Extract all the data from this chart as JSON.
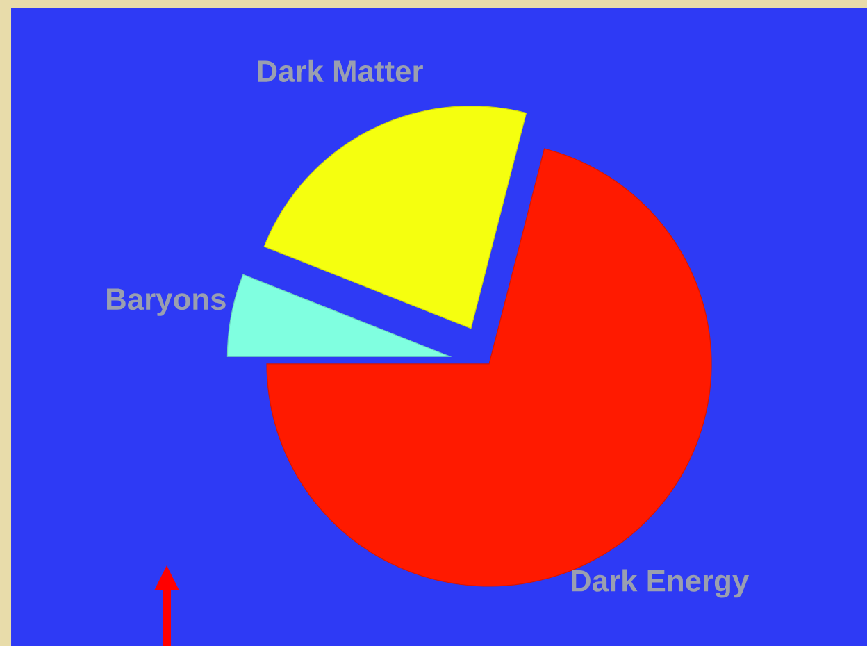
{
  "chart_data": {
    "type": "pie",
    "categories": [
      "Dark Energy",
      "Dark Matter",
      "Baryons"
    ],
    "values": [
      71,
      23,
      6
    ],
    "colors": [
      "#ff1a00",
      "#f5ff0f",
      "#80ffe0"
    ]
  }
}
